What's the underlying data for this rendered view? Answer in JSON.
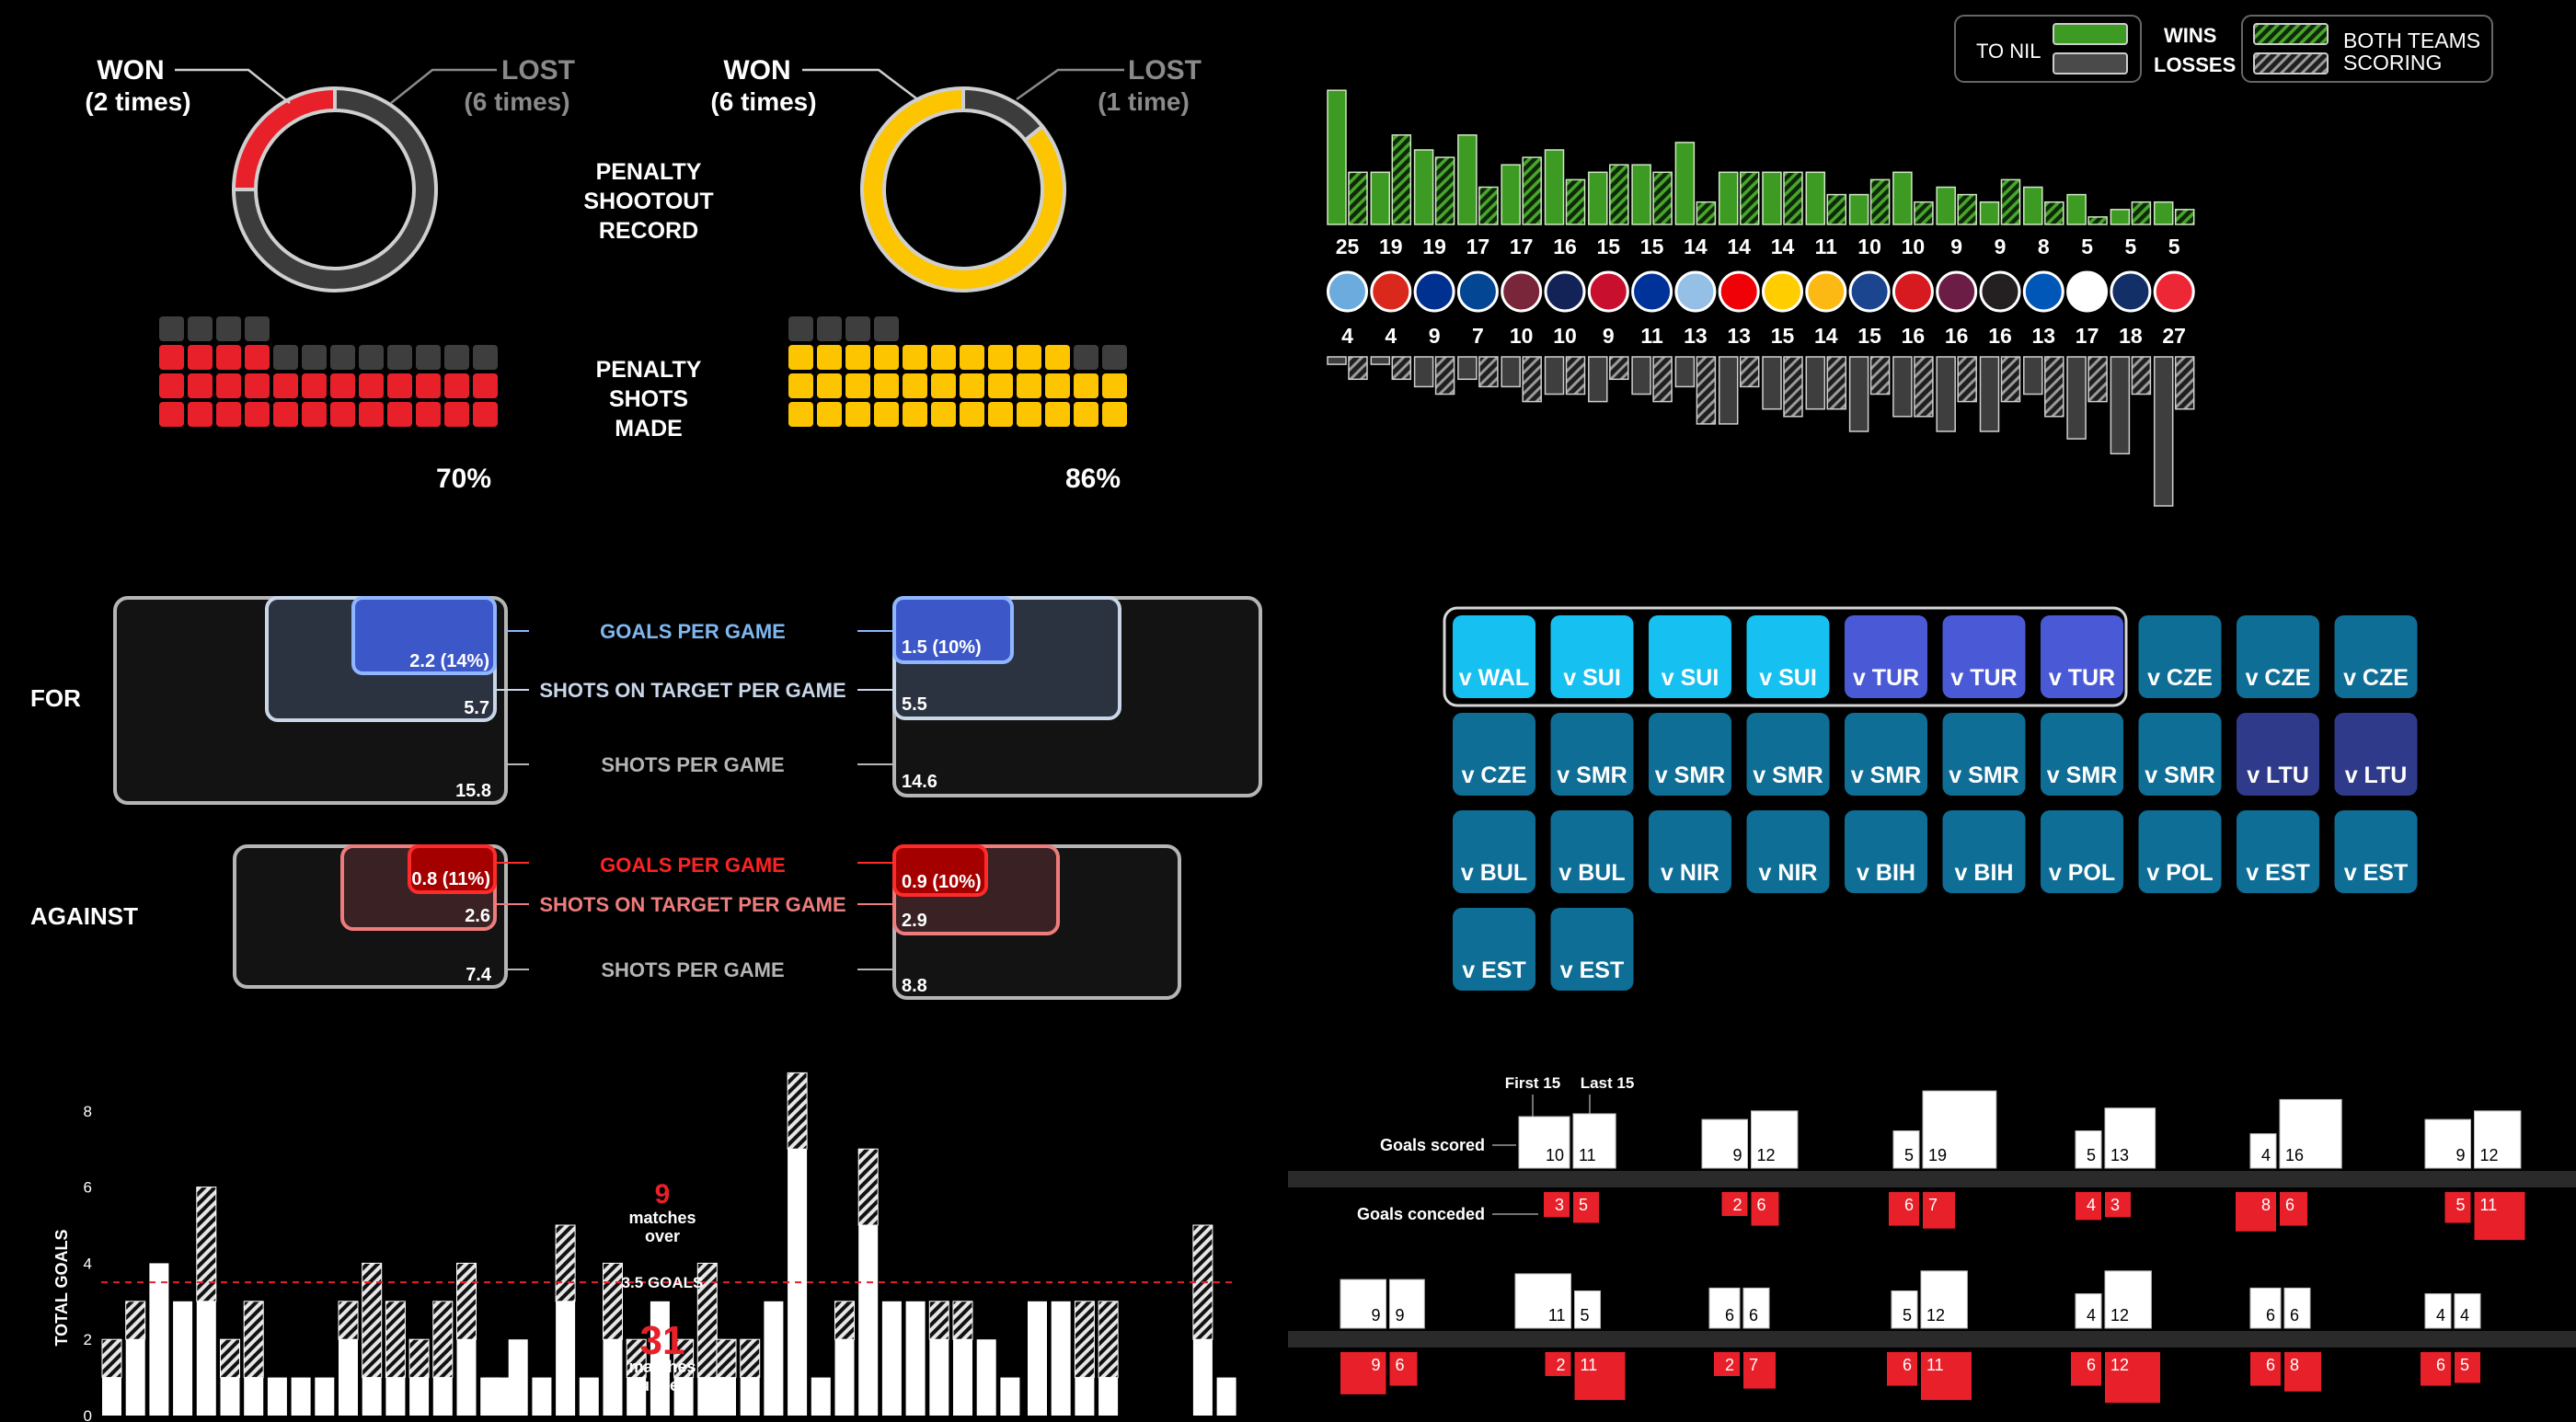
{
  "penalties": {
    "shootout_title": "PENALTY\nSHOOTOUT\nRECORD",
    "shots_title": "PENALTY\nSHOTS\nMADE",
    "teams": [
      {
        "won_label": "WON",
        "won_count": "(2 times)",
        "lost_label": "LOST",
        "lost_count": "(6 times)",
        "won": 2,
        "lost": 6,
        "color": "#e8202a",
        "made_pct_label": "70%",
        "made_pct": 70
      },
      {
        "won_label": "WON",
        "won_count": "(6 times)",
        "lost_label": "LOST",
        "lost_count": "(1 time)",
        "won": 6,
        "lost": 1,
        "color": "#fcc500",
        "made_pct_label": "86%",
        "made_pct": 86
      }
    ]
  },
  "per_game": {
    "for_label": "FOR",
    "against_label": "AGAINST",
    "metric_labels": {
      "goals": "GOALS PER GAME",
      "sot": "SHOTS ON TARGET PER GAME",
      "shots": "SHOTS PER GAME"
    },
    "for": [
      {
        "goals": "2.2 (14%)",
        "sot": "5.7",
        "shots": "15.8"
      },
      {
        "goals": "1.5 (10%)",
        "sot": "5.5",
        "shots": "14.6"
      }
    ],
    "against": [
      {
        "goals": "0.8 (11%)",
        "sot": "2.6",
        "shots": "7.4"
      },
      {
        "goals": "0.9 (10%)",
        "sot": "2.9",
        "shots": "8.8"
      }
    ]
  },
  "results_grid": {
    "tiles": [
      {
        "label": "v WAL",
        "color": "#16c0f0"
      },
      {
        "label": "v SUI",
        "color": "#16c0f0"
      },
      {
        "label": "v SUI",
        "color": "#16c0f0"
      },
      {
        "label": "v SUI",
        "color": "#16c0f0"
      },
      {
        "label": "v TUR",
        "color": "#4a5ad6"
      },
      {
        "label": "v TUR",
        "color": "#4a5ad6"
      },
      {
        "label": "v TUR",
        "color": "#4a5ad6"
      },
      {
        "label": "v CZE",
        "color": "#0f6e96"
      },
      {
        "label": "v CZE",
        "color": "#0f6e96"
      },
      {
        "label": "v CZE",
        "color": "#0f6e96"
      },
      {
        "label": "v CZE",
        "color": "#0f6e96"
      },
      {
        "label": "v SMR",
        "color": "#0f6e96"
      },
      {
        "label": "v SMR",
        "color": "#0f6e96"
      },
      {
        "label": "v SMR",
        "color": "#0f6e96"
      },
      {
        "label": "v SMR",
        "color": "#0f6e96"
      },
      {
        "label": "v SMR",
        "color": "#0f6e96"
      },
      {
        "label": "v SMR",
        "color": "#0f6e96"
      },
      {
        "label": "v SMR",
        "color": "#0f6e96"
      },
      {
        "label": "v LTU",
        "color": "#2f3a8a"
      },
      {
        "label": "v LTU",
        "color": "#2f3a8a"
      },
      {
        "label": "v BUL",
        "color": "#0f6e96"
      },
      {
        "label": "v BUL",
        "color": "#0f6e96"
      },
      {
        "label": "v NIR",
        "color": "#0f6e96"
      },
      {
        "label": "v NIR",
        "color": "#0f6e96"
      },
      {
        "label": "v BIH",
        "color": "#0f6e96"
      },
      {
        "label": "v BIH",
        "color": "#0f6e96"
      },
      {
        "label": "v POL",
        "color": "#0f6e96"
      },
      {
        "label": "v POL",
        "color": "#0f6e96"
      },
      {
        "label": "v EST",
        "color": "#0f6e96"
      },
      {
        "label": "v EST",
        "color": "#0f6e96"
      },
      {
        "label": "v EST",
        "color": "#0f6e96"
      },
      {
        "label": "v EST",
        "color": "#0f6e96"
      }
    ]
  },
  "chart_data": [
    {
      "type": "bar",
      "legend": {
        "to_nil": "TO NIL",
        "wins": "WINS",
        "losses": "LOSSES",
        "both": "BOTH TEAMS",
        "scoring": "SCORING"
      },
      "teams": [
        {
          "crest": "manchester-city-crest",
          "color": "#6cabdd",
          "wins": 25,
          "wins_to_nil": 18,
          "wins_bts": 7,
          "losses": 4,
          "losses_to_nil": 1,
          "losses_bts": 3
        },
        {
          "crest": "manchester-united-crest",
          "color": "#da291c",
          "wins": 19,
          "wins_to_nil": 7,
          "wins_bts": 12,
          "losses": 4,
          "losses_to_nil": 1,
          "losses_bts": 3
        },
        {
          "crest": "leicester-crest",
          "color": "#003090",
          "wins": 19,
          "wins_to_nil": 10,
          "wins_bts": 9,
          "losses": 9,
          "losses_to_nil": 4,
          "losses_bts": 5
        },
        {
          "crest": "chelsea-crest",
          "color": "#034694",
          "wins": 17,
          "wins_to_nil": 12,
          "wins_bts": 5,
          "losses": 7,
          "losses_to_nil": 3,
          "losses_bts": 4
        },
        {
          "crest": "west-ham-crest",
          "color": "#7a263a",
          "wins": 17,
          "wins_to_nil": 8,
          "wins_bts": 9,
          "losses": 10,
          "losses_to_nil": 4,
          "losses_bts": 6
        },
        {
          "crest": "tottenham-crest",
          "color": "#132257",
          "wins": 16,
          "wins_to_nil": 10,
          "wins_bts": 6,
          "losses": 10,
          "losses_to_nil": 5,
          "losses_bts": 5
        },
        {
          "crest": "liverpool-crest",
          "color": "#c8102e",
          "wins": 15,
          "wins_to_nil": 7,
          "wins_bts": 8,
          "losses": 9,
          "losses_to_nil": 6,
          "losses_bts": 3
        },
        {
          "crest": "everton-crest",
          "color": "#003399",
          "wins": 15,
          "wins_to_nil": 8,
          "wins_bts": 7,
          "losses": 11,
          "losses_to_nil": 5,
          "losses_bts": 6
        },
        {
          "crest": "aston-villa-crest",
          "color": "#95bfe5",
          "wins": 14,
          "wins_to_nil": 11,
          "wins_bts": 3,
          "losses": 13,
          "losses_to_nil": 4,
          "losses_bts": 9
        },
        {
          "crest": "arsenal-crest",
          "color": "#ef0107",
          "wins": 14,
          "wins_to_nil": 7,
          "wins_bts": 7,
          "losses": 13,
          "losses_to_nil": 9,
          "losses_bts": 4
        },
        {
          "crest": "leeds-crest",
          "color": "#ffcd00",
          "wins": 14,
          "wins_to_nil": 7,
          "wins_bts": 7,
          "losses": 15,
          "losses_to_nil": 7,
          "losses_bts": 8
        },
        {
          "crest": "wolves-crest",
          "color": "#fdb913",
          "wins": 11,
          "wins_to_nil": 7,
          "wins_bts": 4,
          "losses": 14,
          "losses_to_nil": 7,
          "losses_bts": 7
        },
        {
          "crest": "crystal-palace-crest",
          "color": "#1b458f",
          "wins": 10,
          "wins_to_nil": 4,
          "wins_bts": 6,
          "losses": 15,
          "losses_to_nil": 10,
          "losses_bts": 5
        },
        {
          "crest": "southampton-crest",
          "color": "#d71920",
          "wins": 10,
          "wins_to_nil": 7,
          "wins_bts": 3,
          "losses": 16,
          "losses_to_nil": 8,
          "losses_bts": 8
        },
        {
          "crest": "burnley-crest",
          "color": "#6c1d45",
          "wins": 9,
          "wins_to_nil": 5,
          "wins_bts": 4,
          "losses": 16,
          "losses_to_nil": 10,
          "losses_bts": 6
        },
        {
          "crest": "newcastle-crest",
          "color": "#241f20",
          "wins": 9,
          "wins_to_nil": 3,
          "wins_bts": 6,
          "losses": 16,
          "losses_to_nil": 10,
          "losses_bts": 6
        },
        {
          "crest": "brighton-crest",
          "color": "#0057b8",
          "wins": 8,
          "wins_to_nil": 5,
          "wins_bts": 3,
          "losses": 13,
          "losses_to_nil": 5,
          "losses_bts": 8
        },
        {
          "crest": "fulham-crest",
          "color": "#ffffff",
          "wins": 5,
          "wins_to_nil": 4,
          "wins_bts": 1,
          "losses": 17,
          "losses_to_nil": 11,
          "losses_bts": 6
        },
        {
          "crest": "west-brom-crest",
          "color": "#122f67",
          "wins": 5,
          "wins_to_nil": 2,
          "wins_bts": 3,
          "losses": 18,
          "losses_to_nil": 13,
          "losses_bts": 5
        },
        {
          "crest": "sheffield-united-crest",
          "color": "#ee2737",
          "wins": 5,
          "wins_to_nil": 3,
          "wins_bts": 2,
          "losses": 27,
          "losses_to_nil": 20,
          "losses_bts": 7
        }
      ]
    },
    {
      "type": "bar",
      "ylabel": "TOTAL GOALS",
      "yticks": [
        0,
        2,
        4,
        6,
        8
      ],
      "ylim": [
        0,
        9
      ],
      "threshold": 3.5,
      "threshold_label": "3.5 GOALS",
      "over_count": "9",
      "over_text": "matches\nover",
      "under_count": "31",
      "under_text": "matches\nunder",
      "groups": [
        {
          "solid": [
            1,
            2,
            4,
            3,
            3,
            1,
            1,
            1,
            1,
            1,
            2,
            1,
            1,
            1,
            1,
            2,
            1,
            1
          ],
          "hatch": [
            1,
            1,
            0,
            0,
            3,
            1,
            2,
            0,
            0,
            0,
            1,
            3,
            2,
            1,
            2,
            2,
            0,
            0
          ]
        },
        {
          "solid": [
            1,
            2,
            1,
            3,
            1,
            2,
            1,
            3,
            1,
            1
          ],
          "hatch": [
            0,
            0,
            0,
            2,
            0,
            2,
            1,
            0,
            1,
            3
          ]
        },
        {
          "solid": [
            1,
            1,
            3,
            7,
            1,
            2,
            5,
            3,
            3,
            2,
            2,
            2,
            1
          ],
          "hatch": [
            1,
            1,
            0,
            2,
            0,
            1,
            2,
            0,
            0,
            1,
            1,
            0,
            0
          ]
        },
        {
          "solid": [
            3,
            3,
            1,
            1,
            0,
            0,
            0,
            2,
            1
          ],
          "hatch": [
            0,
            0,
            2,
            2,
            0,
            0,
            0,
            3,
            0
          ]
        }
      ]
    },
    {
      "type": "bar",
      "first_label": "First 15",
      "last_label": "Last 15",
      "scored_label": "Goals scored",
      "conceded_label": "Goals conceded",
      "rows": [
        [
          {
            "sf": 10,
            "sl": 11,
            "cf": 3,
            "cl": 5
          },
          {
            "sf": 9,
            "sl": 12,
            "cf": 2,
            "cl": 6
          },
          {
            "sf": 5,
            "sl": 19,
            "cf": 6,
            "cl": 7
          },
          {
            "sf": 5,
            "sl": 13,
            "cf": 4,
            "cl": 3
          },
          {
            "sf": 4,
            "sl": 16,
            "cf": 8,
            "cl": 6
          },
          {
            "sf": 9,
            "sl": 12,
            "cf": 5,
            "cl": 11
          }
        ],
        [
          {
            "sf": 9,
            "sl": 9,
            "cf": 9,
            "cl": 6
          },
          {
            "sf": 11,
            "sl": 5,
            "cf": 2,
            "cl": 11
          },
          {
            "sf": 6,
            "sl": 6,
            "cf": 2,
            "cl": 7
          },
          {
            "sf": 5,
            "sl": 12,
            "cf": 6,
            "cl": 11
          },
          {
            "sf": 4,
            "sl": 12,
            "cf": 6,
            "cl": 12
          },
          {
            "sf": 6,
            "sl": 6,
            "cf": 6,
            "cl": 8
          },
          {
            "sf": 4,
            "sl": 4,
            "cf": 6,
            "cl": 5
          }
        ]
      ]
    }
  ]
}
